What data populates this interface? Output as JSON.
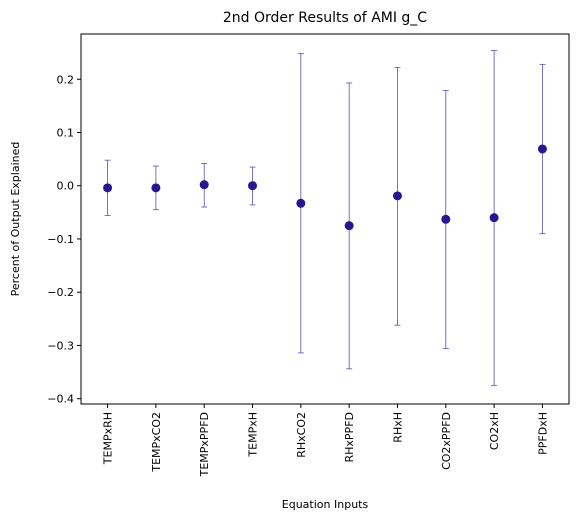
{
  "chart_data": {
    "type": "scatter",
    "title": "2nd Order Results of AMI g_C",
    "xlabel": "Equation Inputs",
    "ylabel": "Percent of Output Explained",
    "ylim": [
      -0.41,
      0.285
    ],
    "yticks": [
      -0.4,
      -0.3,
      -0.2,
      -0.1,
      0.0,
      0.1,
      0.2
    ],
    "ytick_labels": [
      "−0.4",
      "−0.3",
      "−0.2",
      "−0.1",
      "0.0",
      "0.1",
      "0.2"
    ],
    "grid": false,
    "legend": "none",
    "marker_color": "#2a1591",
    "errorbar_color": "#5a4fb0",
    "categories": [
      "TEMPxRH",
      "TEMPxCO2",
      "TEMPxPPFD",
      "TEMPxH",
      "RHxCO2",
      "RHxPPFD",
      "RHxH",
      "CO2xPPFD",
      "CO2xH",
      "PPFDxH"
    ],
    "values": [
      -0.004,
      -0.004,
      0.002,
      0.0,
      -0.033,
      -0.075,
      -0.019,
      -0.063,
      -0.06,
      0.069
    ],
    "error_low": [
      -0.056,
      -0.045,
      -0.04,
      -0.036,
      -0.314,
      -0.344,
      -0.262,
      -0.306,
      -0.375,
      -0.09
    ],
    "error_high": [
      0.048,
      0.037,
      0.042,
      0.035,
      0.248,
      0.193,
      0.222,
      0.179,
      0.254,
      0.228
    ]
  }
}
